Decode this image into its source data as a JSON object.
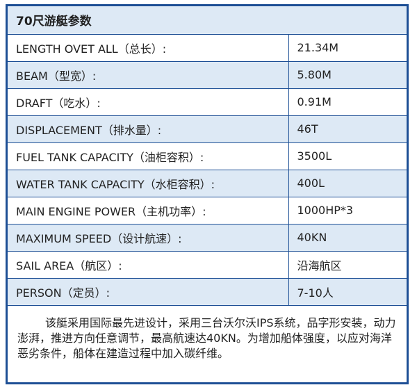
{
  "table": {
    "title": "70尺游艇参数",
    "rows": [
      {
        "label": "LENGTH OVET ALL（总长）:",
        "value": "21.34M"
      },
      {
        "label": "BEAM（型宽）:",
        "value": "5.80M"
      },
      {
        "label": "DRAFT（吃水）:",
        "value": "0.91M"
      },
      {
        "label": "DISPLACEMENT（排水量）:",
        "value": "46T"
      },
      {
        "label": "FUEL TANK CAPACITY（油柜容积）:",
        "value": "3500L"
      },
      {
        "label": "WATER TANK CAPACITY（水柜容积）:",
        "value": "400L"
      },
      {
        "label": "MAIN ENGINE POWER（主机功率）:",
        "value": "1000HP*3"
      },
      {
        "label": "MAXIMUM SPEED（设计航速）:",
        "value": "40KN"
      },
      {
        "label": "SAIL AREA（航区）:",
        "value": "沿海航区"
      },
      {
        "label": "PERSON（定员）:",
        "value": "7-10人"
      }
    ]
  },
  "description": "该艇采用国际最先进设计，采用三台沃尔沃IPS系统，品字形安装，动力澎湃，推进方向任意调节，最高航速达40KN。为增加船体强度，以应对海洋恶劣条件，船体在建造过程中加入碳纤维。",
  "colors": {
    "border": "#1d4f95",
    "shaded_row": "#dde9f5"
  }
}
